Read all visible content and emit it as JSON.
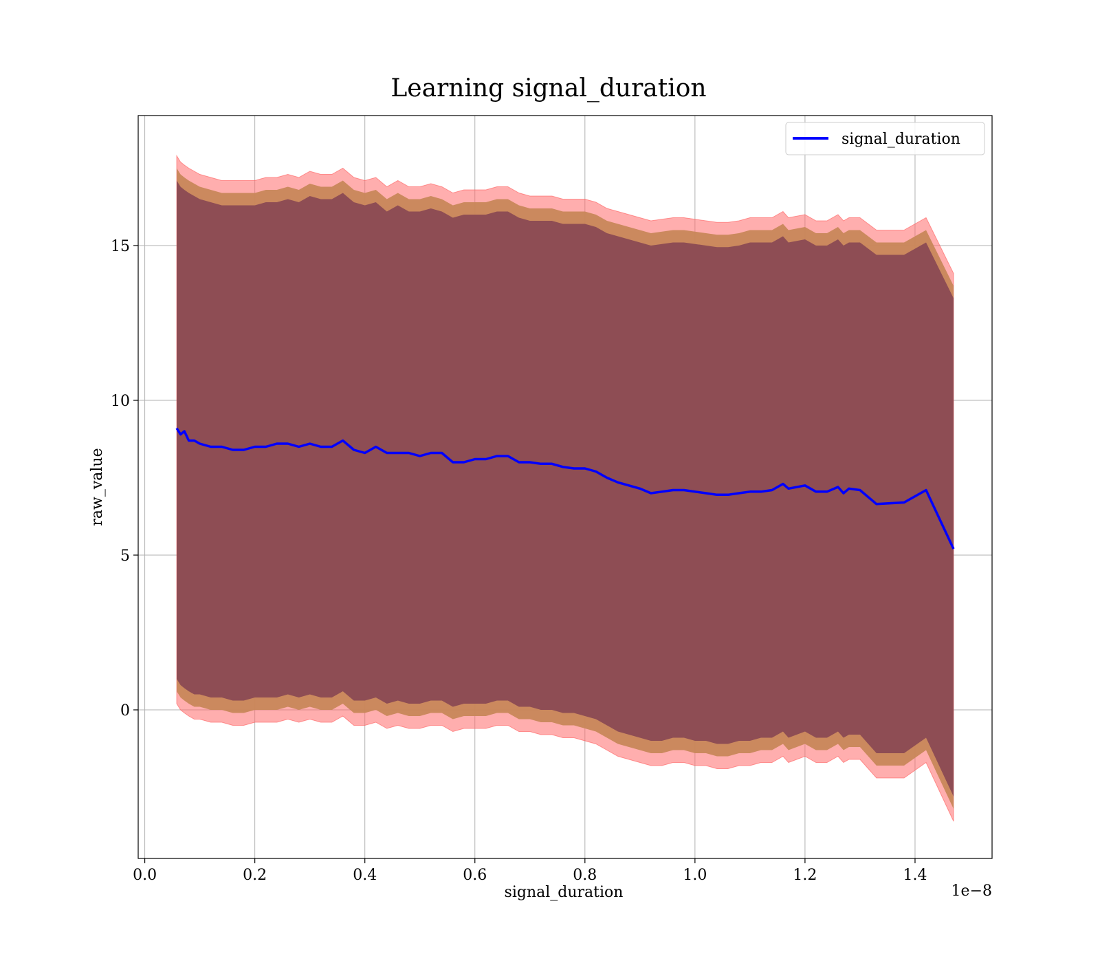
{
  "chart_data": {
    "type": "line",
    "title": "Learning signal_duration",
    "xlabel": "signal_duration",
    "ylabel": "raw_value",
    "x_offset_label": "1e−8",
    "xlim": [
      -0.012,
      1.54
    ],
    "ylim": [
      -4.8,
      19.2
    ],
    "xticks": [
      0.0,
      0.2,
      0.4,
      0.6,
      0.8,
      1.0,
      1.2,
      1.4
    ],
    "xtick_labels": [
      "0.0",
      "0.2",
      "0.4",
      "0.6",
      "0.8",
      "1.0",
      "1.2",
      "1.4"
    ],
    "yticks": [
      0,
      5,
      10,
      15
    ],
    "ytick_labels": [
      "0",
      "5",
      "10",
      "15"
    ],
    "grid": true,
    "legend": {
      "position": "top-right",
      "entries": [
        "signal_duration"
      ]
    },
    "colors": {
      "line": "#0000ff",
      "band_outer": "#ff6b6b",
      "band_middle": "#c8875a",
      "band_inner": "#7a3a52",
      "grid": "#b0b0b0"
    },
    "series": [
      {
        "name": "signal_duration",
        "x": [
          0.058,
          0.065,
          0.072,
          0.08,
          0.09,
          0.1,
          0.12,
          0.14,
          0.16,
          0.18,
          0.2,
          0.22,
          0.24,
          0.26,
          0.28,
          0.3,
          0.32,
          0.34,
          0.36,
          0.38,
          0.4,
          0.42,
          0.44,
          0.46,
          0.48,
          0.5,
          0.52,
          0.54,
          0.56,
          0.58,
          0.6,
          0.62,
          0.64,
          0.66,
          0.68,
          0.7,
          0.72,
          0.74,
          0.76,
          0.78,
          0.8,
          0.82,
          0.84,
          0.86,
          0.88,
          0.9,
          0.92,
          0.94,
          0.96,
          0.98,
          1.0,
          1.02,
          1.04,
          1.06,
          1.08,
          1.1,
          1.12,
          1.14,
          1.16,
          1.17,
          1.2,
          1.22,
          1.24,
          1.26,
          1.27,
          1.28,
          1.3,
          1.33,
          1.38,
          1.42,
          1.47
        ],
        "y": [
          9.1,
          8.9,
          9.0,
          8.7,
          8.7,
          8.6,
          8.5,
          8.5,
          8.4,
          8.4,
          8.5,
          8.5,
          8.6,
          8.6,
          8.5,
          8.6,
          8.5,
          8.5,
          8.7,
          8.4,
          8.3,
          8.5,
          8.3,
          8.3,
          8.3,
          8.2,
          8.3,
          8.3,
          8.0,
          8.0,
          8.1,
          8.1,
          8.2,
          8.2,
          8.0,
          8.0,
          7.95,
          7.95,
          7.85,
          7.8,
          7.8,
          7.7,
          7.5,
          7.35,
          7.25,
          7.15,
          7.0,
          7.05,
          7.1,
          7.1,
          7.05,
          7.0,
          6.95,
          6.95,
          7.0,
          7.05,
          7.05,
          7.1,
          7.3,
          7.15,
          7.25,
          7.05,
          7.05,
          7.2,
          7.0,
          7.15,
          7.1,
          6.65,
          6.7,
          7.1,
          5.2
        ],
        "band_outer_upper": [
          17.9,
          17.7,
          17.6,
          17.5,
          17.4,
          17.3,
          17.2,
          17.1,
          17.1,
          17.1,
          17.1,
          17.2,
          17.2,
          17.3,
          17.2,
          17.4,
          17.3,
          17.3,
          17.5,
          17.2,
          17.1,
          17.2,
          16.9,
          17.1,
          16.9,
          16.9,
          17.0,
          16.9,
          16.7,
          16.8,
          16.8,
          16.8,
          16.9,
          16.9,
          16.7,
          16.6,
          16.6,
          16.6,
          16.5,
          16.5,
          16.5,
          16.4,
          16.2,
          16.1,
          16.0,
          15.9,
          15.8,
          15.85,
          15.9,
          15.9,
          15.85,
          15.8,
          15.75,
          15.75,
          15.8,
          15.9,
          15.9,
          15.9,
          16.1,
          15.9,
          16.0,
          15.8,
          15.8,
          16.0,
          15.8,
          15.9,
          15.9,
          15.5,
          15.5,
          15.9,
          14.1
        ],
        "band_outer_lower": [
          0.2,
          0.0,
          -0.1,
          -0.2,
          -0.3,
          -0.3,
          -0.4,
          -0.4,
          -0.5,
          -0.5,
          -0.4,
          -0.4,
          -0.4,
          -0.3,
          -0.4,
          -0.3,
          -0.4,
          -0.4,
          -0.2,
          -0.5,
          -0.5,
          -0.4,
          -0.6,
          -0.5,
          -0.6,
          -0.6,
          -0.5,
          -0.5,
          -0.7,
          -0.6,
          -0.6,
          -0.6,
          -0.5,
          -0.5,
          -0.7,
          -0.7,
          -0.8,
          -0.8,
          -0.9,
          -0.9,
          -1.0,
          -1.1,
          -1.3,
          -1.5,
          -1.6,
          -1.7,
          -1.8,
          -1.8,
          -1.7,
          -1.7,
          -1.8,
          -1.8,
          -1.9,
          -1.9,
          -1.8,
          -1.8,
          -1.7,
          -1.7,
          -1.5,
          -1.7,
          -1.5,
          -1.7,
          -1.7,
          -1.5,
          -1.7,
          -1.6,
          -1.6,
          -2.2,
          -2.2,
          -1.7,
          -3.6
        ],
        "band_middle_upper": [
          17.5,
          17.3,
          17.2,
          17.1,
          17.0,
          16.9,
          16.8,
          16.7,
          16.7,
          16.7,
          16.7,
          16.8,
          16.8,
          16.9,
          16.8,
          17.0,
          16.9,
          16.9,
          17.1,
          16.8,
          16.7,
          16.8,
          16.5,
          16.7,
          16.5,
          16.5,
          16.6,
          16.5,
          16.3,
          16.4,
          16.4,
          16.4,
          16.5,
          16.5,
          16.3,
          16.2,
          16.2,
          16.2,
          16.1,
          16.1,
          16.1,
          16.0,
          15.8,
          15.7,
          15.6,
          15.5,
          15.4,
          15.45,
          15.5,
          15.5,
          15.45,
          15.4,
          15.35,
          15.35,
          15.4,
          15.5,
          15.5,
          15.5,
          15.7,
          15.5,
          15.6,
          15.4,
          15.4,
          15.6,
          15.4,
          15.5,
          15.5,
          15.1,
          15.1,
          15.5,
          13.7
        ],
        "band_middle_lower": [
          0.6,
          0.4,
          0.3,
          0.2,
          0.1,
          0.1,
          0.0,
          0.0,
          -0.1,
          -0.1,
          0.0,
          0.0,
          0.0,
          0.1,
          0.0,
          0.1,
          0.0,
          0.0,
          0.2,
          -0.1,
          -0.1,
          0.0,
          -0.2,
          -0.1,
          -0.2,
          -0.2,
          -0.1,
          -0.1,
          -0.3,
          -0.2,
          -0.2,
          -0.2,
          -0.1,
          -0.1,
          -0.3,
          -0.3,
          -0.4,
          -0.4,
          -0.5,
          -0.5,
          -0.6,
          -0.7,
          -0.9,
          -1.1,
          -1.2,
          -1.3,
          -1.4,
          -1.4,
          -1.3,
          -1.3,
          -1.4,
          -1.4,
          -1.5,
          -1.5,
          -1.4,
          -1.4,
          -1.3,
          -1.3,
          -1.1,
          -1.3,
          -1.1,
          -1.3,
          -1.3,
          -1.1,
          -1.3,
          -1.2,
          -1.2,
          -1.8,
          -1.8,
          -1.3,
          -3.2
        ],
        "band_inner_upper": [
          17.1,
          16.9,
          16.8,
          16.7,
          16.6,
          16.5,
          16.4,
          16.3,
          16.3,
          16.3,
          16.3,
          16.4,
          16.4,
          16.5,
          16.4,
          16.6,
          16.5,
          16.5,
          16.7,
          16.4,
          16.3,
          16.4,
          16.1,
          16.3,
          16.1,
          16.1,
          16.2,
          16.1,
          15.9,
          16.0,
          16.0,
          16.0,
          16.1,
          16.1,
          15.9,
          15.8,
          15.8,
          15.8,
          15.7,
          15.7,
          15.7,
          15.6,
          15.4,
          15.3,
          15.2,
          15.1,
          15.0,
          15.05,
          15.1,
          15.1,
          15.05,
          15.0,
          14.95,
          14.95,
          15.0,
          15.1,
          15.1,
          15.1,
          15.3,
          15.1,
          15.2,
          15.0,
          15.0,
          15.2,
          15.0,
          15.1,
          15.1,
          14.7,
          14.7,
          15.1,
          13.3
        ],
        "band_inner_lower": [
          1.0,
          0.8,
          0.7,
          0.6,
          0.5,
          0.5,
          0.4,
          0.4,
          0.3,
          0.3,
          0.4,
          0.4,
          0.4,
          0.5,
          0.4,
          0.5,
          0.4,
          0.4,
          0.6,
          0.3,
          0.3,
          0.4,
          0.2,
          0.3,
          0.2,
          0.2,
          0.3,
          0.3,
          0.1,
          0.2,
          0.2,
          0.2,
          0.3,
          0.3,
          0.1,
          0.1,
          0.0,
          0.0,
          -0.1,
          -0.1,
          -0.2,
          -0.3,
          -0.5,
          -0.7,
          -0.8,
          -0.9,
          -1.0,
          -1.0,
          -0.9,
          -0.9,
          -1.0,
          -1.0,
          -1.1,
          -1.1,
          -1.0,
          -1.0,
          -0.9,
          -0.9,
          -0.7,
          -0.9,
          -0.7,
          -0.9,
          -0.9,
          -0.7,
          -0.9,
          -0.8,
          -0.8,
          -1.4,
          -1.4,
          -0.9,
          -2.8
        ]
      }
    ]
  }
}
